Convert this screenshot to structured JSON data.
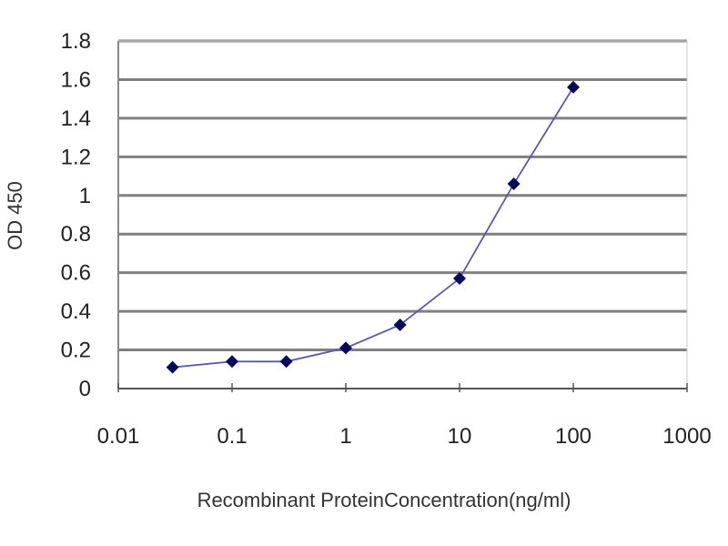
{
  "chart_data": {
    "type": "line",
    "title": "",
    "xlabel": "Recombinant ProteinConcentration(ng/ml)",
    "ylabel": "OD 450",
    "x_scale": "log",
    "xlim": [
      0.01,
      1000
    ],
    "ylim": [
      0,
      1.8
    ],
    "x_ticks": [
      "0.01",
      "0.1",
      "1",
      "10",
      "100",
      "1000"
    ],
    "y_ticks": [
      "0",
      "0.2",
      "0.4",
      "0.6",
      "0.8",
      "1",
      "1.2",
      "1.4",
      "1.6",
      "1.8"
    ],
    "grid": "horizontal",
    "series": [
      {
        "x": [
          0.03,
          0.1,
          0.3,
          1,
          3,
          10,
          30,
          100
        ],
        "y": [
          0.11,
          0.14,
          0.14,
          0.21,
          0.33,
          0.57,
          1.06,
          1.56
        ]
      }
    ],
    "colors": {
      "line": "#5a5aa8",
      "marker": "#0a0a5a",
      "grid": "#808080"
    }
  }
}
